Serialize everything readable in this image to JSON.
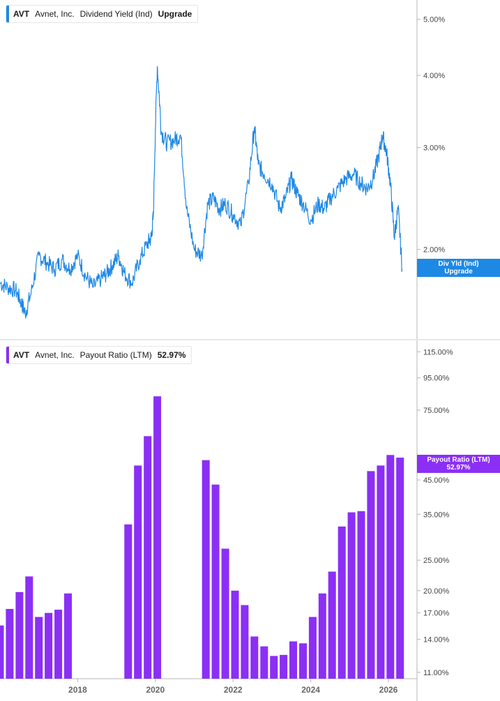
{
  "top_legend": {
    "ticker": "AVT",
    "company": "Avnet, Inc.",
    "metric": "Dividend Yield (Ind)",
    "value": "Upgrade"
  },
  "top_tag": {
    "line1": "Div Yld (Ind)",
    "line2": "Upgrade"
  },
  "bottom_legend": {
    "ticker": "AVT",
    "company": "Avnet, Inc.",
    "metric": "Payout Ratio (LTM)",
    "value": "52.97%"
  },
  "bottom_tag": {
    "line1": "Payout Ratio (LTM)",
    "line2": "52.97%"
  },
  "colors": {
    "line": "#1e88e5",
    "bars": "#8b2ff5",
    "axis": "#b5b5b5"
  },
  "chart_data": [
    {
      "type": "line",
      "name": "Dividend Yield (Ind)",
      "scale": "log",
      "ylim": [
        1.4,
        5.4
      ],
      "xlim": [
        2016.0,
        2026.7
      ],
      "y_ticks": [
        {
          "value": 5.0,
          "label": "5.00%"
        },
        {
          "value": 4.0,
          "label": "4.00%"
        },
        {
          "value": 3.0,
          "label": "3.00%"
        },
        {
          "value": 2.0,
          "label": "2.00%"
        }
      ],
      "x": [
        2016.0,
        2016.2,
        2016.4,
        2016.55,
        2016.65,
        2016.8,
        2017.0,
        2017.2,
        2017.4,
        2017.6,
        2017.8,
        2018.0,
        2018.2,
        2018.4,
        2018.6,
        2018.75,
        2018.9,
        2019.05,
        2019.2,
        2019.4,
        2019.6,
        2019.8,
        2019.9,
        2019.95,
        2020.05,
        2020.15,
        2020.3,
        2020.5,
        2020.65,
        2020.8,
        2021.0,
        2021.2,
        2021.35,
        2021.5,
        2021.65,
        2021.8,
        2022.0,
        2022.2,
        2022.4,
        2022.55,
        2022.65,
        2022.8,
        2023.0,
        2023.2,
        2023.35,
        2023.5,
        2023.65,
        2023.8,
        2024.0,
        2024.2,
        2024.35,
        2024.5,
        2024.7,
        2024.9,
        2025.1,
        2025.3,
        2025.45,
        2025.6,
        2025.75,
        2025.85,
        2025.95,
        2026.05,
        2026.15,
        2026.25,
        2026.35
      ],
      "y": [
        1.75,
        1.72,
        1.7,
        1.62,
        1.55,
        1.68,
        1.95,
        1.9,
        1.85,
        1.92,
        1.85,
        1.95,
        1.8,
        1.72,
        1.78,
        1.82,
        1.88,
        1.95,
        1.82,
        1.75,
        1.92,
        2.05,
        2.1,
        2.3,
        4.15,
        3.2,
        3.05,
        3.1,
        3.15,
        2.35,
        2.0,
        1.95,
        2.4,
        2.45,
        2.35,
        2.4,
        2.3,
        2.2,
        2.6,
        3.25,
        2.8,
        2.7,
        2.6,
        2.35,
        2.45,
        2.65,
        2.5,
        2.4,
        2.25,
        2.4,
        2.35,
        2.45,
        2.55,
        2.65,
        2.7,
        2.6,
        2.55,
        2.65,
        2.9,
        3.15,
        2.95,
        2.6,
        2.1,
        2.35,
        1.85
      ]
    },
    {
      "type": "bar",
      "name": "Payout Ratio (LTM)",
      "scale": "log",
      "ylim": [
        10.5,
        125
      ],
      "xlim": [
        2016.0,
        2026.7
      ],
      "y_ticks": [
        {
          "value": 115,
          "label": "115.00%"
        },
        {
          "value": 95,
          "label": "95.00%"
        },
        {
          "value": 75,
          "label": "75.00%"
        },
        {
          "value": 45,
          "label": "45.00%"
        },
        {
          "value": 35,
          "label": "35.00%"
        },
        {
          "value": 25,
          "label": "25.00%"
        },
        {
          "value": 20,
          "label": "20.00%"
        },
        {
          "value": 17,
          "label": "17.00%"
        },
        {
          "value": 14,
          "label": "14.00%"
        },
        {
          "value": 11,
          "label": "11.00%"
        }
      ],
      "x_ticks": [
        {
          "value": 2018,
          "label": "2018"
        },
        {
          "value": 2020,
          "label": "2020"
        },
        {
          "value": 2022,
          "label": "2022"
        },
        {
          "value": 2024,
          "label": "2024"
        },
        {
          "value": 2026,
          "label": "2026"
        }
      ],
      "x": [
        2016.0,
        2016.25,
        2016.5,
        2016.75,
        2017.0,
        2017.25,
        2017.5,
        2017.75,
        2019.3,
        2019.55,
        2019.8,
        2020.05,
        2021.3,
        2021.55,
        2021.8,
        2022.05,
        2022.3,
        2022.55,
        2022.8,
        2023.05,
        2023.3,
        2023.55,
        2023.8,
        2024.05,
        2024.3,
        2024.55,
        2024.8,
        2025.05,
        2025.3,
        2025.55,
        2025.8,
        2026.05,
        2026.3
      ],
      "values": [
        15.5,
        17.5,
        19.8,
        22.2,
        16.5,
        17.0,
        17.4,
        19.6,
        32.5,
        50.0,
        62.0,
        83.0,
        52.0,
        43.5,
        27.2,
        20.0,
        18.0,
        14.3,
        13.3,
        12.4,
        12.5,
        13.8,
        13.6,
        16.5,
        19.6,
        23.0,
        32.0,
        35.5,
        35.8,
        48.0,
        50.0,
        54.0,
        52.97
      ]
    }
  ]
}
